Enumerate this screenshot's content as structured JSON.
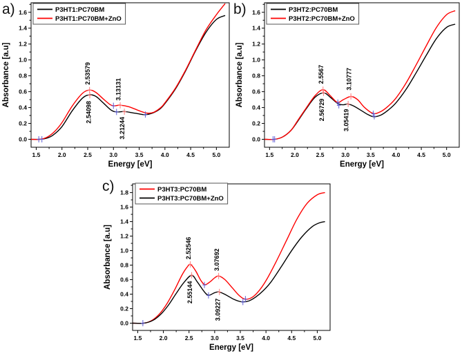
{
  "colors": {
    "curve_black": "#000000",
    "curve_red": "#fe0000",
    "marker_blue": "#5b5bd6",
    "marker_red": "#ff7a7a",
    "frame": "#000000",
    "legend_border": "#555555"
  },
  "chart_data": [
    {
      "type": "line",
      "panel_label": "a)",
      "xlabel": "Energy [eV]",
      "ylabel": "Absorbance [a.u]",
      "xlim": [
        1.4,
        5.25
      ],
      "ylim": [
        -0.1,
        1.72
      ],
      "xticks": [
        1.5,
        2.0,
        2.5,
        3.0,
        3.5,
        4.0,
        4.5,
        5.0
      ],
      "yticks": [
        0.0,
        0.2,
        0.4,
        0.6,
        0.8,
        1.0,
        1.2,
        1.4,
        1.6
      ],
      "grid": false,
      "legend_position": "top-left",
      "legend": [
        {
          "label": "P3HT1:PC70BM",
          "color": "curve_black"
        },
        {
          "label": "P3HT1:PC70BM+ZnO",
          "color": "curve_red"
        }
      ],
      "series": [
        {
          "name": "P3HT1:PC70BM",
          "color": "curve_black",
          "points": [
            [
              1.4,
              0.0
            ],
            [
              1.55,
              0.0
            ],
            [
              1.68,
              0.01
            ],
            [
              1.82,
              0.05
            ],
            [
              2.0,
              0.16
            ],
            [
              2.2,
              0.36
            ],
            [
              2.4,
              0.52
            ],
            [
              2.54,
              0.56
            ],
            [
              2.66,
              0.54
            ],
            [
              2.8,
              0.46
            ],
            [
              2.95,
              0.37
            ],
            [
              3.06,
              0.345
            ],
            [
              3.21,
              0.35
            ],
            [
              3.36,
              0.335
            ],
            [
              3.5,
              0.32
            ],
            [
              3.62,
              0.31
            ],
            [
              3.76,
              0.33
            ],
            [
              3.9,
              0.38
            ],
            [
              4.0,
              0.45
            ],
            [
              4.2,
              0.63
            ],
            [
              4.4,
              0.86
            ],
            [
              4.6,
              1.12
            ],
            [
              4.8,
              1.35
            ],
            [
              5.0,
              1.51
            ],
            [
              5.17,
              1.56
            ]
          ]
        },
        {
          "name": "P3HT1:PC70BM+ZnO",
          "color": "curve_red",
          "points": [
            [
              1.4,
              0.0
            ],
            [
              1.58,
              0.0
            ],
            [
              1.72,
              0.03
            ],
            [
              1.86,
              0.1
            ],
            [
              2.0,
              0.21
            ],
            [
              2.2,
              0.42
            ],
            [
              2.4,
              0.58
            ],
            [
              2.54,
              0.62
            ],
            [
              2.66,
              0.59
            ],
            [
              2.8,
              0.51
            ],
            [
              2.94,
              0.435
            ],
            [
              3.02,
              0.422
            ],
            [
              3.13,
              0.43
            ],
            [
              3.3,
              0.41
            ],
            [
              3.5,
              0.36
            ],
            [
              3.65,
              0.33
            ],
            [
              3.78,
              0.34
            ],
            [
              3.92,
              0.4
            ],
            [
              4.0,
              0.46
            ],
            [
              4.2,
              0.64
            ],
            [
              4.4,
              0.87
            ],
            [
              4.6,
              1.13
            ],
            [
              4.8,
              1.38
            ],
            [
              5.0,
              1.57
            ],
            [
              5.17,
              1.71
            ]
          ]
        }
      ],
      "peak_annotations": [
        {
          "text": "2.53579",
          "x": 2.5,
          "y": 0.67,
          "dir": "up"
        },
        {
          "text": "2.54098",
          "x": 2.52,
          "y": 0.5,
          "dir": "down"
        },
        {
          "text": "3.13131",
          "x": 3.1,
          "y": 0.47,
          "dir": "up"
        },
        {
          "text": "3.21244",
          "x": 3.17,
          "y": 0.3,
          "dir": "down"
        }
      ],
      "markers": {
        "red": [
          [
            2.536,
            0.62
          ],
          [
            2.541,
            0.555
          ],
          [
            3.131,
            0.428
          ],
          [
            3.212,
            0.348
          ]
        ],
        "blue": [
          [
            1.55,
            0.0
          ],
          [
            1.61,
            0.0
          ],
          [
            3.0,
            0.422
          ],
          [
            3.06,
            0.345
          ],
          [
            3.62,
            0.312
          ]
        ]
      }
    },
    {
      "type": "line",
      "panel_label": "b)",
      "xlabel": "Energy [eV]",
      "ylabel": "Absorbance [a.u]",
      "xlim": [
        1.4,
        5.25
      ],
      "ylim": [
        -0.1,
        1.72
      ],
      "xticks": [
        1.5,
        2.0,
        2.5,
        3.0,
        3.5,
        4.0,
        4.5,
        5.0
      ],
      "yticks": [
        0.0,
        0.2,
        0.4,
        0.6,
        0.8,
        1.0,
        1.2,
        1.4,
        1.6
      ],
      "grid": false,
      "legend_position": "top-left",
      "legend": [
        {
          "label": "P3HT2:PC70BM",
          "color": "curve_black"
        },
        {
          "label": "P3HT2:PC70BM+ZnO",
          "color": "curve_red"
        }
      ],
      "series": [
        {
          "name": "P3HT2:PC70BM",
          "color": "curve_black",
          "points": [
            [
              1.4,
              0.0
            ],
            [
              1.6,
              0.0
            ],
            [
              1.76,
              0.03
            ],
            [
              1.92,
              0.11
            ],
            [
              2.06,
              0.23
            ],
            [
              2.22,
              0.38
            ],
            [
              2.4,
              0.53
            ],
            [
              2.57,
              0.585
            ],
            [
              2.7,
              0.53
            ],
            [
              2.85,
              0.45
            ],
            [
              2.96,
              0.435
            ],
            [
              3.05,
              0.445
            ],
            [
              3.16,
              0.42
            ],
            [
              3.32,
              0.36
            ],
            [
              3.45,
              0.31
            ],
            [
              3.56,
              0.285
            ],
            [
              3.7,
              0.305
            ],
            [
              3.85,
              0.37
            ],
            [
              4.0,
              0.46
            ],
            [
              4.2,
              0.63
            ],
            [
              4.4,
              0.84
            ],
            [
              4.6,
              1.06
            ],
            [
              4.8,
              1.27
            ],
            [
              5.0,
              1.41
            ],
            [
              5.17,
              1.45
            ]
          ]
        },
        {
          "name": "P3HT2:PC70BM+ZnO",
          "color": "curve_red",
          "points": [
            [
              1.4,
              0.0
            ],
            [
              1.6,
              0.0
            ],
            [
              1.76,
              0.03
            ],
            [
              1.92,
              0.11
            ],
            [
              2.06,
              0.24
            ],
            [
              2.22,
              0.39
            ],
            [
              2.4,
              0.55
            ],
            [
              2.56,
              0.625
            ],
            [
              2.7,
              0.55
            ],
            [
              2.84,
              0.465
            ],
            [
              2.96,
              0.5
            ],
            [
              3.11,
              0.54
            ],
            [
              3.24,
              0.5
            ],
            [
              3.38,
              0.4
            ],
            [
              3.55,
              0.325
            ],
            [
              3.7,
              0.35
            ],
            [
              3.85,
              0.42
            ],
            [
              4.0,
              0.52
            ],
            [
              4.2,
              0.71
            ],
            [
              4.4,
              0.94
            ],
            [
              4.6,
              1.18
            ],
            [
              4.8,
              1.41
            ],
            [
              5.0,
              1.57
            ],
            [
              5.17,
              1.62
            ]
          ]
        }
      ],
      "peak_annotations": [
        {
          "text": "2.5567",
          "x": 2.52,
          "y": 0.68,
          "dir": "up"
        },
        {
          "text": "2.56729",
          "x": 2.53,
          "y": 0.53,
          "dir": "down"
        },
        {
          "text": "3.10777",
          "x": 3.07,
          "y": 0.6,
          "dir": "up"
        },
        {
          "text": "3.05419",
          "x": 3.02,
          "y": 0.4,
          "dir": "down"
        }
      ],
      "markers": {
        "red": [
          [
            2.557,
            0.625
          ],
          [
            2.567,
            0.585
          ],
          [
            3.108,
            0.54
          ],
          [
            3.054,
            0.445
          ]
        ],
        "blue": [
          [
            1.57,
            0.0
          ],
          [
            1.6,
            0.0
          ],
          [
            2.85,
            0.462
          ],
          [
            2.87,
            0.428
          ],
          [
            3.55,
            0.322
          ],
          [
            3.57,
            0.29
          ]
        ]
      }
    },
    {
      "type": "line",
      "panel_label": "c)",
      "xlabel": "Energy [eV]",
      "ylabel": "Absorbance [a.u]",
      "xlim": [
        1.4,
        5.25
      ],
      "ylim": [
        -0.1,
        1.92
      ],
      "xticks": [
        1.5,
        2.0,
        2.5,
        3.0,
        3.5,
        4.0,
        4.5,
        5.0
      ],
      "yticks": [
        0.0,
        0.2,
        0.4,
        0.6,
        0.8,
        1.0,
        1.2,
        1.4,
        1.6,
        1.8
      ],
      "grid": false,
      "legend_position": "top-left",
      "legend": [
        {
          "label": "P3HT3:PC70BM",
          "color": "curve_red"
        },
        {
          "label": "P3HT3:PC70BM+ZnO",
          "color": "curve_black"
        }
      ],
      "series": [
        {
          "name": "P3HT3:PC70BM",
          "color": "curve_red",
          "points": [
            [
              1.4,
              0.0
            ],
            [
              1.62,
              0.0
            ],
            [
              1.78,
              0.04
            ],
            [
              1.94,
              0.14
            ],
            [
              2.08,
              0.28
            ],
            [
              2.22,
              0.46
            ],
            [
              2.36,
              0.66
            ],
            [
              2.46,
              0.77
            ],
            [
              2.53,
              0.81
            ],
            [
              2.63,
              0.72
            ],
            [
              2.73,
              0.59
            ],
            [
              2.81,
              0.53
            ],
            [
              2.91,
              0.57
            ],
            [
              3.0,
              0.625
            ],
            [
              3.08,
              0.65
            ],
            [
              3.2,
              0.6
            ],
            [
              3.34,
              0.49
            ],
            [
              3.48,
              0.38
            ],
            [
              3.6,
              0.33
            ],
            [
              3.74,
              0.36
            ],
            [
              3.88,
              0.46
            ],
            [
              4.02,
              0.61
            ],
            [
              4.2,
              0.85
            ],
            [
              4.4,
              1.14
            ],
            [
              4.6,
              1.43
            ],
            [
              4.8,
              1.65
            ],
            [
              5.0,
              1.77
            ],
            [
              5.15,
              1.8
            ]
          ]
        },
        {
          "name": "P3HT3:PC70BM+ZnO",
          "color": "curve_black",
          "points": [
            [
              1.4,
              0.0
            ],
            [
              1.62,
              0.0
            ],
            [
              1.8,
              0.04
            ],
            [
              1.96,
              0.13
            ],
            [
              2.1,
              0.25
            ],
            [
              2.25,
              0.41
            ],
            [
              2.4,
              0.56
            ],
            [
              2.55,
              0.66
            ],
            [
              2.66,
              0.57
            ],
            [
              2.79,
              0.44
            ],
            [
              2.88,
              0.385
            ],
            [
              3.0,
              0.42
            ],
            [
              3.09,
              0.43
            ],
            [
              3.22,
              0.39
            ],
            [
              3.37,
              0.33
            ],
            [
              3.52,
              0.295
            ],
            [
              3.66,
              0.305
            ],
            [
              3.8,
              0.36
            ],
            [
              3.95,
              0.45
            ],
            [
              4.1,
              0.57
            ],
            [
              4.3,
              0.78
            ],
            [
              4.5,
              1.0
            ],
            [
              4.7,
              1.19
            ],
            [
              4.9,
              1.33
            ],
            [
              5.05,
              1.385
            ],
            [
              5.15,
              1.4
            ]
          ]
        }
      ],
      "peak_annotations": [
        {
          "text": "2.52546",
          "x": 2.49,
          "y": 0.86,
          "dir": "up"
        },
        {
          "text": "2.55144",
          "x": 2.52,
          "y": 0.6,
          "dir": "down"
        },
        {
          "text": "3.07692",
          "x": 3.04,
          "y": 0.7,
          "dir": "up"
        },
        {
          "text": "3.09227",
          "x": 3.06,
          "y": 0.36,
          "dir": "down"
        }
      ],
      "markers": {
        "red": [
          [
            2.525,
            0.81
          ],
          [
            2.551,
            0.66
          ],
          [
            3.077,
            0.65
          ],
          [
            3.092,
            0.43
          ]
        ],
        "blue": [
          [
            1.6,
            0.0
          ],
          [
            2.8,
            0.527
          ],
          [
            2.88,
            0.383
          ],
          [
            3.55,
            0.292
          ],
          [
            3.6,
            0.332
          ]
        ]
      }
    }
  ]
}
